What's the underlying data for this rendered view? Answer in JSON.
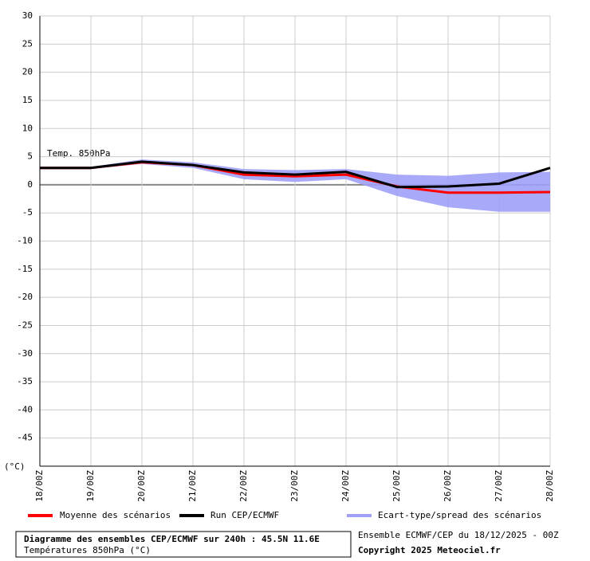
{
  "chart_data": {
    "type": "line",
    "title": "Diagramme des ensembles CEP/ECMWF sur 240h : 45.5N 11.6E",
    "subtitle": "Températures 850hPa (°C)",
    "source": "Ensemble ECMWF/CEP du 18/12/2025 - 00Z",
    "copyright": "Copyright 2025 Meteociel.fr",
    "annotation": "Temp. 850hPa",
    "y_label": "(°C)",
    "categories": [
      "18/00Z",
      "19/00Z",
      "20/00Z",
      "21/00Z",
      "22/00Z",
      "23/00Z",
      "24/00Z",
      "25/00Z",
      "26/00Z",
      "27/00Z",
      "28/00Z"
    ],
    "series": [
      {
        "name": "Moyenne des scénarios",
        "color": "#ff0000",
        "values": [
          3,
          3,
          4,
          3.5,
          1.8,
          1.5,
          1.8,
          -0.3,
          -1.4,
          -1.4,
          -1.3
        ]
      },
      {
        "name": "Run CEP/ECMWF",
        "color": "#000000",
        "values": [
          3,
          3,
          4.1,
          3.5,
          2.2,
          1.8,
          2.3,
          -0.4,
          -0.3,
          0.2,
          3
        ]
      },
      {
        "name": "Ecart-type/spread des scénarios",
        "color": "#a0a0f8",
        "upper": [
          3.2,
          3.2,
          4.5,
          4,
          2.8,
          2.6,
          2.8,
          1.8,
          1.6,
          2.2,
          2.3
        ],
        "lower": [
          2.8,
          2.8,
          3.7,
          3,
          1,
          0.5,
          1,
          -2,
          -4,
          -4.8,
          -4.8
        ]
      }
    ],
    "ylim": [
      -50,
      30
    ],
    "yticks": [
      30,
      25,
      20,
      15,
      10,
      5,
      0,
      -5,
      -10,
      -15,
      -20,
      -25,
      -30,
      -35,
      -40,
      -45
    ],
    "grid": true
  }
}
